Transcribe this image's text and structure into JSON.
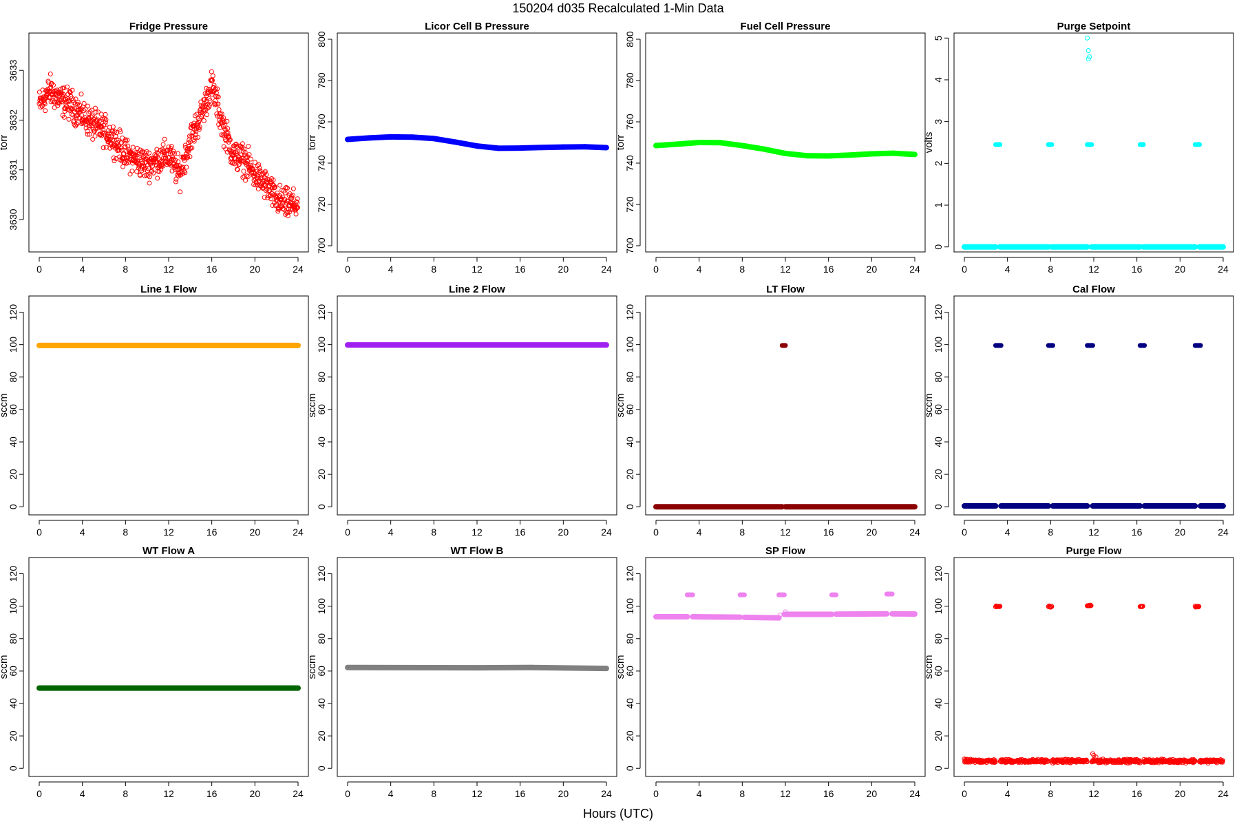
{
  "figure": {
    "title": "150204    d035    Recalculated 1-Min Data",
    "xlabel": "Hours (UTC)"
  },
  "chart_data": [
    {
      "type": "scatter",
      "title": "Fridge Pressure",
      "ylabel": "torr",
      "color": "#ff0000",
      "style": "open-noisy",
      "xlim": [
        0,
        24
      ],
      "xticks": [
        0,
        4,
        8,
        12,
        16,
        20,
        24
      ],
      "ylim": [
        3629.35,
        3633.75
      ],
      "yticks": [
        3630,
        3631,
        3632,
        3633
      ],
      "x": [
        0,
        1,
        2,
        3,
        4,
        5,
        6,
        7,
        8,
        9,
        10,
        11,
        12,
        13,
        14,
        15,
        16,
        17,
        18,
        19,
        20,
        21,
        22,
        23,
        24
      ],
      "y": [
        3632.3,
        3632.6,
        3632.4,
        3632.3,
        3632.1,
        3631.9,
        3631.8,
        3631.6,
        3631.3,
        3631.2,
        3631.1,
        3631.2,
        3631.3,
        3630.9,
        3631.6,
        3632.1,
        3632.7,
        3631.9,
        3631.3,
        3631.2,
        3630.9,
        3630.7,
        3630.4,
        3630.3,
        3630.3
      ],
      "noise": 0.45
    },
    {
      "type": "scatter",
      "title": "Licor Cell B Pressure",
      "ylabel": "torr",
      "color": "#0000ff",
      "style": "thick",
      "xlim": [
        0,
        24
      ],
      "xticks": [
        0,
        4,
        8,
        12,
        16,
        20,
        24
      ],
      "ylim": [
        697,
        803
      ],
      "yticks": [
        700,
        720,
        740,
        760,
        780,
        800
      ],
      "x": [
        0,
        2,
        4,
        6,
        8,
        10,
        12,
        14,
        16,
        18,
        20,
        22,
        24
      ],
      "y": [
        751.5,
        752.2,
        752.7,
        752.6,
        751.9,
        750.2,
        748.3,
        747.2,
        747.3,
        747.6,
        747.8,
        747.9,
        747.5
      ]
    },
    {
      "type": "scatter",
      "title": "Fuel Cell Pressure",
      "ylabel": "torr",
      "color": "#00ff00",
      "style": "thick",
      "xlim": [
        0,
        24
      ],
      "xticks": [
        0,
        4,
        8,
        12,
        16,
        20,
        24
      ],
      "ylim": [
        697,
        803
      ],
      "yticks": [
        700,
        720,
        740,
        760,
        780,
        800
      ],
      "x": [
        0,
        2,
        4,
        6,
        8,
        10,
        12,
        14,
        16,
        18,
        20,
        22,
        24
      ],
      "y": [
        748.5,
        749.2,
        750.0,
        749.9,
        748.5,
        746.8,
        744.7,
        743.6,
        743.5,
        743.9,
        744.5,
        744.8,
        744.2
      ]
    },
    {
      "type": "scatter",
      "title": "Purge Setpoint",
      "ylabel": "volts",
      "color": "#00ffff",
      "style": "baseline-events",
      "xlim": [
        0,
        24
      ],
      "xticks": [
        0,
        4,
        8,
        12,
        16,
        20,
        24
      ],
      "ylim": [
        -0.12,
        5.12
      ],
      "yticks": [
        0,
        1,
        2,
        3,
        4,
        5
      ],
      "baseline": 0,
      "events": [
        {
          "x": [
            2.9,
            3.3
          ],
          "y": 2.45
        },
        {
          "x": [
            7.8,
            8.1
          ],
          "y": 2.45
        },
        {
          "x": [
            11.4,
            11.8
          ],
          "y": 2.45
        },
        {
          "x": [
            16.3,
            16.6
          ],
          "y": 2.45
        },
        {
          "x": [
            21.4,
            21.8
          ],
          "y": 2.45
        }
      ],
      "extra_points": [
        {
          "x": 11.4,
          "y": 5.0
        },
        {
          "x": 11.5,
          "y": 4.7
        },
        {
          "x": 11.6,
          "y": 4.55
        },
        {
          "x": 11.5,
          "y": 4.5
        }
      ]
    },
    {
      "type": "scatter",
      "title": "Line 1 Flow",
      "ylabel": "sccm",
      "color": "#ffa500",
      "style": "thick",
      "xlim": [
        0,
        24
      ],
      "xticks": [
        0,
        4,
        8,
        12,
        16,
        20,
        24
      ],
      "ylim": [
        -5,
        130
      ],
      "yticks": [
        0,
        20,
        40,
        60,
        80,
        100,
        120
      ],
      "x": [
        0,
        24
      ],
      "y": [
        99.5,
        99.5
      ]
    },
    {
      "type": "scatter",
      "title": "Line 2 Flow",
      "ylabel": "sccm",
      "color": "#a020f0",
      "style": "thick",
      "xlim": [
        0,
        24
      ],
      "xticks": [
        0,
        4,
        8,
        12,
        16,
        20,
        24
      ],
      "ylim": [
        -5,
        130
      ],
      "yticks": [
        0,
        20,
        40,
        60,
        80,
        100,
        120
      ],
      "x": [
        0,
        24
      ],
      "y": [
        99.8,
        99.8
      ]
    },
    {
      "type": "scatter",
      "title": "LT Flow",
      "ylabel": "sccm",
      "color": "#8b0000",
      "style": "baseline-events",
      "xlim": [
        0,
        24
      ],
      "xticks": [
        0,
        4,
        8,
        12,
        16,
        20,
        24
      ],
      "ylim": [
        -5,
        130
      ],
      "yticks": [
        0,
        20,
        40,
        60,
        80,
        100,
        120
      ],
      "baseline": 0,
      "events": [
        {
          "x": [
            11.7,
            12.0
          ],
          "y": 99.5
        }
      ],
      "extra_points": []
    },
    {
      "type": "scatter",
      "title": "Cal Flow",
      "ylabel": "sccm",
      "color": "#000080",
      "style": "baseline-events",
      "xlim": [
        0,
        24
      ],
      "xticks": [
        0,
        4,
        8,
        12,
        16,
        20,
        24
      ],
      "ylim": [
        -5,
        130
      ],
      "yticks": [
        0,
        20,
        40,
        60,
        80,
        100,
        120
      ],
      "baseline": 0.5,
      "events": [
        {
          "x": [
            2.9,
            3.4
          ],
          "y": 99.5
        },
        {
          "x": [
            7.8,
            8.2
          ],
          "y": 99.5
        },
        {
          "x": [
            11.4,
            11.9
          ],
          "y": 99.5
        },
        {
          "x": [
            16.3,
            16.7
          ],
          "y": 99.5
        },
        {
          "x": [
            21.4,
            21.9
          ],
          "y": 99.5
        }
      ],
      "extra_points": []
    },
    {
      "type": "scatter",
      "title": "WT Flow A",
      "ylabel": "sccm",
      "color": "#006400",
      "style": "thick",
      "xlim": [
        0,
        24
      ],
      "xticks": [
        0,
        4,
        8,
        12,
        16,
        20,
        24
      ],
      "ylim": [
        -5,
        130
      ],
      "yticks": [
        0,
        20,
        40,
        60,
        80,
        100,
        120
      ],
      "x": [
        0,
        24
      ],
      "y": [
        49.5,
        49.5
      ]
    },
    {
      "type": "scatter",
      "title": "WT Flow B",
      "ylabel": "sccm",
      "color": "#808080",
      "style": "thick",
      "xlim": [
        0,
        24
      ],
      "xticks": [
        0,
        4,
        8,
        12,
        16,
        20,
        24
      ],
      "ylim": [
        -5,
        130
      ],
      "yticks": [
        0,
        20,
        40,
        60,
        80,
        100,
        120
      ],
      "x": [
        0,
        12,
        17,
        24
      ],
      "y": [
        62.2,
        62.0,
        62.2,
        61.6
      ]
    },
    {
      "type": "scatter",
      "title": "SP Flow",
      "ylabel": "sccm",
      "color": "#ee82ee",
      "style": "segments",
      "xlim": [
        0,
        24
      ],
      "xticks": [
        0,
        4,
        8,
        12,
        16,
        20,
        24
      ],
      "ylim": [
        -5,
        130
      ],
      "yticks": [
        0,
        20,
        40,
        60,
        80,
        100,
        120
      ],
      "segments": [
        {
          "x": [
            0,
            2.9
          ],
          "y": [
            93.5,
            93.5
          ]
        },
        {
          "x": [
            3.4,
            7.8
          ],
          "y": [
            93.5,
            93.2
          ]
        },
        {
          "x": [
            8.2,
            11.4
          ],
          "y": [
            93.1,
            92.8
          ]
        },
        {
          "x": [
            11.9,
            16.3
          ],
          "y": [
            95.0,
            95.0
          ]
        },
        {
          "x": [
            16.7,
            21.4
          ],
          "y": [
            95.1,
            95.3
          ]
        },
        {
          "x": [
            21.9,
            24
          ],
          "y": [
            95.3,
            95.2
          ]
        }
      ],
      "events": [
        {
          "x": [
            2.9,
            3.4
          ],
          "y": 107
        },
        {
          "x": [
            7.8,
            8.2
          ],
          "y": 107
        },
        {
          "x": [
            11.4,
            11.9
          ],
          "y": 107
        },
        {
          "x": [
            16.3,
            16.7
          ],
          "y": 107
        },
        {
          "x": [
            21.4,
            21.9
          ],
          "y": 107.5
        }
      ],
      "extra_points": [
        {
          "x": 11.5,
          "y": 94.5
        },
        {
          "x": 12.0,
          "y": 96.5
        }
      ]
    },
    {
      "type": "scatter",
      "title": "Purge Flow",
      "ylabel": "sccm",
      "color": "#ff0000",
      "style": "open-baseline-events",
      "xlim": [
        0,
        24
      ],
      "xticks": [
        0,
        4,
        8,
        12,
        16,
        20,
        24
      ],
      "ylim": [
        -5,
        130
      ],
      "yticks": [
        0,
        20,
        40,
        60,
        80,
        100,
        120
      ],
      "baseline": 4.5,
      "noise": 1.5,
      "events": [
        {
          "x": [
            2.9,
            3.3
          ],
          "y": 99.8
        },
        {
          "x": [
            7.8,
            8.1
          ],
          "y": 99.8
        },
        {
          "x": [
            11.4,
            11.8
          ],
          "y": 100.3
        },
        {
          "x": [
            16.3,
            16.6
          ],
          "y": 99.8
        },
        {
          "x": [
            21.4,
            21.8
          ],
          "y": 99.8
        }
      ],
      "extra_points": [
        {
          "x": 11.9,
          "y": 9.0
        },
        {
          "x": 12.0,
          "y": 8.0
        },
        {
          "x": 12.2,
          "y": 7.0
        }
      ]
    }
  ]
}
